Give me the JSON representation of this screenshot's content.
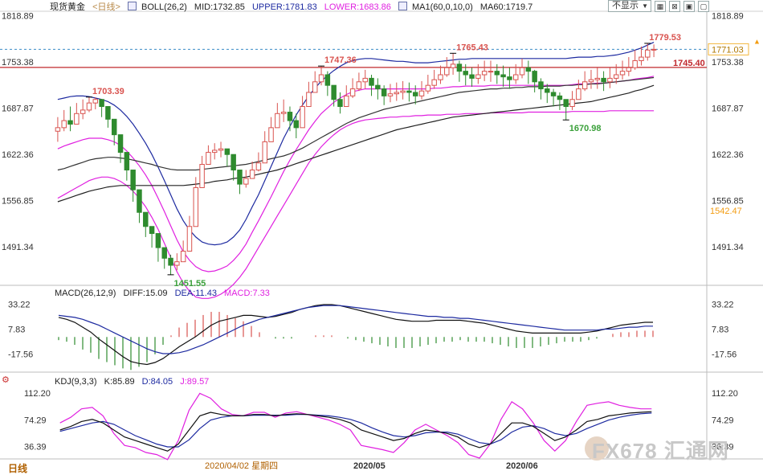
{
  "header": {
    "instrument": "现货黄金",
    "period_link": "<日线>",
    "boll": "BOLL(26,2)",
    "mid": "MID:1732.85",
    "upper": "UPPER:1781.83",
    "lower": "LOWER:1683.86",
    "ma": "MA1(60,0,10,0)",
    "ma60": "MA60:1719.7",
    "display_dropdown": "不显示",
    "caret": "▼"
  },
  "colors": {
    "candle_up": "#d9534f",
    "candle_down": "#2e8b2e",
    "boll_upper": "#1d2aa0",
    "boll_lower": "#e020e0",
    "boll_mid": "#e020e0",
    "ma60": "#222222",
    "ma_other": "#333333",
    "price_line_red": "#c0282d",
    "dashed_blue": "#3b8cc8",
    "macd_diff": "#111111",
    "macd_dea": "#1d2aa0",
    "kdj_k": "#111111",
    "kdj_d": "#1d2aa0",
    "kdj_j": "#e020e0",
    "axis_text": "#333333",
    "label_red": "#d9534f",
    "label_green": "#3aa03a",
    "current_price_box": "#f3b63a",
    "low_price_orange": "#f39c12"
  },
  "axes": {
    "price_ticks": [
      "1818.89",
      "1753.38",
      "1687.87",
      "1622.36",
      "1556.85",
      "1491.34"
    ],
    "current_price": "1771.03",
    "level_right": "1542.47",
    "red_line_label": "1745.40",
    "x_labels": [
      "2020/04/02 星期四",
      "2020/05",
      "2020/06"
    ],
    "macd_ticks": [
      "33.22",
      "7.83",
      "-17.56"
    ],
    "kdj_ticks": [
      "112.20",
      "74.29",
      "36.39"
    ]
  },
  "annotations": {
    "high1": "1703.39",
    "low1": "1451.55",
    "high2": "1747.36",
    "high3": "1765.43",
    "low2": "1670.98",
    "high4": "1779.53"
  },
  "macd_header": {
    "name": "MACD(26,12,9)",
    "diff": "DIFF:15.09",
    "dea": "DEA:11.43",
    "macd": "MACD:7.33"
  },
  "kdj_header": {
    "name": "KDJ(9,3,3)",
    "k": "K:85.89",
    "d": "D:84.05",
    "j": "J:89.57"
  },
  "footer": {
    "period_tab": "日线",
    "watermark": "FX678 汇通网"
  },
  "chart_data": {
    "type": "candlestick",
    "ylim": [
      1440,
      1825
    ],
    "closes": [
      1660,
      1670,
      1665,
      1680,
      1685,
      1695,
      1700,
      1690,
      1672,
      1650,
      1625,
      1600,
      1572,
      1540,
      1520,
      1510,
      1490,
      1475,
      1465,
      1470,
      1485,
      1520,
      1575,
      1608,
      1625,
      1628,
      1630,
      1622,
      1600,
      1580,
      1588,
      1600,
      1610,
      1640,
      1660,
      1680,
      1682,
      1670,
      1660,
      1690,
      1710,
      1725,
      1735,
      1720,
      1700,
      1690,
      1705,
      1715,
      1725,
      1730,
      1720,
      1715,
      1705,
      1708,
      1710,
      1712,
      1710,
      1705,
      1712,
      1720,
      1728,
      1735,
      1745,
      1750,
      1740,
      1735,
      1730,
      1735,
      1740,
      1740,
      1735,
      1732,
      1728,
      1735,
      1745,
      1740,
      1725,
      1715,
      1710,
      1705,
      1700,
      1690,
      1700,
      1715,
      1725,
      1728,
      1730,
      1725,
      1730,
      1735,
      1740,
      1745,
      1755,
      1760,
      1770,
      1771
    ],
    "highs": [
      1675,
      1685,
      1690,
      1695,
      1700,
      1703.39,
      1703,
      1695,
      1685,
      1665,
      1635,
      1615,
      1585,
      1560,
      1535,
      1520,
      1500,
      1490,
      1480,
      1482,
      1500,
      1535,
      1590,
      1620,
      1635,
      1638,
      1640,
      1630,
      1615,
      1595,
      1600,
      1612,
      1625,
      1655,
      1675,
      1695,
      1700,
      1690,
      1680,
      1705,
      1725,
      1740,
      1747.36,
      1740,
      1718,
      1710,
      1720,
      1730,
      1738,
      1742,
      1735,
      1730,
      1720,
      1722,
      1724,
      1726,
      1724,
      1720,
      1726,
      1735,
      1742,
      1748,
      1760,
      1765.43,
      1755,
      1750,
      1745,
      1750,
      1755,
      1755,
      1750,
      1748,
      1745,
      1750,
      1758,
      1755,
      1742,
      1730,
      1722,
      1715,
      1710,
      1700,
      1712,
      1728,
      1740,
      1742,
      1745,
      1740,
      1745,
      1750,
      1755,
      1760,
      1770,
      1775,
      1779.53,
      1778
    ],
    "lows": [
      1640,
      1655,
      1655,
      1665,
      1672,
      1682,
      1686,
      1675,
      1660,
      1635,
      1610,
      1585,
      1555,
      1525,
      1505,
      1490,
      1470,
      1460,
      1451.55,
      1458,
      1470,
      1508,
      1560,
      1595,
      1612,
      1615,
      1618,
      1605,
      1585,
      1566,
      1575,
      1588,
      1598,
      1628,
      1645,
      1665,
      1668,
      1655,
      1645,
      1675,
      1695,
      1710,
      1720,
      1705,
      1690,
      1680,
      1690,
      1702,
      1712,
      1715,
      1705,
      1700,
      1692,
      1696,
      1698,
      1700,
      1697,
      1693,
      1700,
      1708,
      1715,
      1722,
      1732,
      1735,
      1725,
      1720,
      1718,
      1722,
      1726,
      1725,
      1722,
      1718,
      1715,
      1722,
      1730,
      1722,
      1710,
      1700,
      1695,
      1690,
      1685,
      1670.98,
      1685,
      1700,
      1712,
      1715,
      1715,
      1712,
      1716,
      1722,
      1728,
      1733,
      1742,
      1748,
      1755,
      1760
    ],
    "boll_upper": [
      1700,
      1702,
      1704,
      1705,
      1705,
      1704,
      1702,
      1700,
      1697,
      1692,
      1685,
      1676,
      1665,
      1652,
      1638,
      1622,
      1604,
      1585,
      1565,
      1545,
      1528,
      1515,
      1505,
      1498,
      1495,
      1494,
      1495,
      1498,
      1505,
      1515,
      1530,
      1548,
      1565,
      1585,
      1605,
      1625,
      1645,
      1662,
      1678,
      1692,
      1705,
      1716,
      1726,
      1734,
      1741,
      1747,
      1752,
      1755,
      1757,
      1758,
      1758,
      1757,
      1756,
      1755,
      1754,
      1754,
      1753,
      1752,
      1752,
      1752,
      1753,
      1754,
      1755,
      1756,
      1757,
      1757,
      1758,
      1758,
      1758,
      1758,
      1758,
      1758,
      1758,
      1758,
      1758,
      1758,
      1758,
      1758,
      1758,
      1758,
      1758,
      1758,
      1759,
      1760,
      1760,
      1760,
      1761,
      1761,
      1762,
      1763,
      1765,
      1767,
      1770,
      1773,
      1777,
      1781
    ],
    "boll_lower": [
      1560,
      1565,
      1570,
      1575,
      1580,
      1585,
      1588,
      1590,
      1590,
      1588,
      1584,
      1578,
      1570,
      1560,
      1548,
      1533,
      1516,
      1496,
      1476,
      1456,
      1440,
      1428,
      1420,
      1418,
      1418,
      1420,
      1424,
      1430,
      1438,
      1448,
      1460,
      1475,
      1490,
      1505,
      1520,
      1535,
      1550,
      1565,
      1580,
      1595,
      1610,
      1622,
      1633,
      1642,
      1650,
      1657,
      1662,
      1666,
      1669,
      1671,
      1672,
      1673,
      1674,
      1675,
      1675,
      1676,
      1676,
      1677,
      1677,
      1678,
      1678,
      1678,
      1679,
      1679,
      1679,
      1680,
      1680,
      1680,
      1680,
      1681,
      1681,
      1681,
      1681,
      1681,
      1681,
      1682,
      1682,
      1682,
      1682,
      1682,
      1682,
      1682,
      1683,
      1683,
      1683,
      1683,
      1683,
      1683,
      1684,
      1684,
      1684,
      1684,
      1684,
      1684,
      1684,
      1684
    ],
    "boll_mid": [
      1630,
      1634,
      1637,
      1640,
      1643,
      1645,
      1645,
      1645,
      1643,
      1640,
      1635,
      1627,
      1617,
      1606,
      1593,
      1578,
      1560,
      1541,
      1521,
      1501,
      1484,
      1472,
      1463,
      1458,
      1456,
      1457,
      1460,
      1464,
      1472,
      1482,
      1495,
      1512,
      1528,
      1545,
      1562,
      1580,
      1598,
      1614,
      1629,
      1643,
      1657,
      1669,
      1680,
      1688,
      1696,
      1702,
      1707,
      1711,
      1713,
      1715,
      1715,
      1715,
      1715,
      1715,
      1715,
      1715,
      1715,
      1715,
      1715,
      1715,
      1716,
      1716,
      1717,
      1718,
      1718,
      1719,
      1719,
      1719,
      1719,
      1720,
      1720,
      1720,
      1720,
      1720,
      1720,
      1720,
      1720,
      1720,
      1720,
      1720,
      1720,
      1720,
      1721,
      1722,
      1722,
      1722,
      1723,
      1723,
      1724,
      1725,
      1726,
      1727,
      1729,
      1730,
      1731,
      1733
    ],
    "ma60": [
      1555,
      1558,
      1561,
      1564,
      1567,
      1570,
      1572,
      1574,
      1576,
      1577,
      1578,
      1578,
      1578,
      1578,
      1578,
      1578,
      1578,
      1578,
      1578,
      1578,
      1578,
      1579,
      1580,
      1581,
      1582,
      1584,
      1585,
      1586,
      1588,
      1589,
      1590,
      1592,
      1594,
      1596,
      1598,
      1600,
      1603,
      1606,
      1609,
      1612,
      1615,
      1618,
      1621,
      1624,
      1627,
      1630,
      1633,
      1636,
      1639,
      1642,
      1645,
      1648,
      1651,
      1654,
      1657,
      1659,
      1661,
      1663,
      1665,
      1667,
      1669,
      1671,
      1673,
      1675,
      1676,
      1677,
      1678,
      1679,
      1680,
      1681,
      1682,
      1683,
      1684,
      1685,
      1686,
      1687,
      1688,
      1689,
      1690,
      1691,
      1692,
      1693,
      1694,
      1695,
      1696,
      1697,
      1699,
      1701,
      1703,
      1705,
      1707,
      1709,
      1712,
      1714,
      1717,
      1720
    ],
    "ma_mid": [
      1600,
      1602,
      1605,
      1608,
      1611,
      1614,
      1616,
      1617,
      1618,
      1618,
      1617,
      1616,
      1614,
      1612,
      1610,
      1608,
      1605,
      1603,
      1601,
      1600,
      1600,
      1600,
      1600,
      1601,
      1602,
      1603,
      1604,
      1605,
      1606,
      1607,
      1608,
      1610,
      1612,
      1614,
      1616,
      1618,
      1620,
      1623,
      1627,
      1631,
      1636,
      1641,
      1646,
      1651,
      1656,
      1661,
      1666,
      1670,
      1674,
      1677,
      1680,
      1683,
      1686,
      1688,
      1690,
      1692,
      1694,
      1696,
      1698,
      1700,
      1702,
      1704,
      1706,
      1708,
      1710,
      1711,
      1712,
      1713,
      1714,
      1715,
      1715,
      1716,
      1716,
      1717,
      1717,
      1718,
      1718,
      1718,
      1719,
      1719,
      1719,
      1720,
      1720,
      1721,
      1721,
      1722,
      1722,
      1723,
      1724,
      1725,
      1726,
      1727,
      1728,
      1729,
      1730,
      1731
    ],
    "macd": {
      "ylim": [
        -35,
        42
      ],
      "diff": [
        20,
        18,
        15,
        10,
        5,
        -2,
        -8,
        -14,
        -20,
        -25,
        -27,
        -28,
        -26,
        -22,
        -16,
        -10,
        -5,
        0,
        6,
        12,
        16,
        18,
        20,
        22,
        22,
        21,
        20,
        21,
        23,
        25,
        28,
        30,
        32,
        33,
        33,
        32,
        30,
        28,
        26,
        24,
        22,
        20,
        18,
        17,
        16,
        16,
        16,
        17,
        17,
        17,
        17,
        16,
        15,
        14,
        12,
        10,
        8,
        6,
        5,
        4,
        4,
        4,
        4,
        4,
        4,
        4,
        5,
        6,
        8,
        10,
        12,
        13,
        14,
        15,
        15
      ],
      "dea": [
        22,
        21,
        20,
        18,
        15,
        12,
        8,
        4,
        0,
        -4,
        -8,
        -12,
        -15,
        -17,
        -17,
        -16,
        -14,
        -11,
        -8,
        -4,
        0,
        4,
        8,
        12,
        15,
        18,
        20,
        22,
        24,
        26,
        28,
        30,
        31,
        32,
        32,
        32,
        31,
        30,
        29,
        28,
        27,
        26,
        25,
        24,
        23,
        22,
        21,
        21,
        20,
        20,
        19,
        19,
        18,
        17,
        16,
        15,
        14,
        13,
        12,
        11,
        10,
        9,
        8,
        7,
        7,
        7,
        7,
        7,
        8,
        8,
        9,
        10,
        10,
        11,
        11
      ],
      "hist": [
        -2,
        -3,
        -5,
        -8,
        -10,
        -14,
        -16,
        -18,
        -20,
        -21,
        -19,
        -16,
        -11,
        -5,
        1,
        6,
        9,
        11,
        14,
        16,
        16,
        14,
        12,
        10,
        7,
        3,
        0,
        -1,
        -1,
        -1,
        0,
        0,
        1,
        1,
        1,
        0,
        -1,
        -2,
        -3,
        -4,
        -5,
        -6,
        -7,
        -7,
        -7,
        -6,
        -5,
        -4,
        -3,
        -3,
        -2,
        -3,
        -3,
        -3,
        -4,
        -5,
        -6,
        -7,
        -7,
        -7,
        -6,
        -5,
        -4,
        -3,
        -3,
        -3,
        -2,
        -1,
        0,
        2,
        3,
        3,
        4,
        4,
        4
      ]
    },
    "kdj": {
      "ylim": [
        20,
        125
      ],
      "k": [
        60,
        65,
        72,
        75,
        70,
        60,
        50,
        45,
        40,
        35,
        30,
        40,
        60,
        80,
        85,
        82,
        80,
        80,
        82,
        82,
        80,
        82,
        83,
        82,
        80,
        78,
        75,
        70,
        60,
        55,
        50,
        45,
        48,
        55,
        60,
        58,
        55,
        50,
        40,
        35,
        40,
        55,
        70,
        70,
        65,
        55,
        45,
        50,
        60,
        72,
        75,
        80,
        82,
        84,
        85,
        86
      ],
      "d": [
        58,
        62,
        66,
        70,
        72,
        68,
        60,
        52,
        46,
        40,
        36,
        36,
        46,
        62,
        74,
        78,
        80,
        80,
        81,
        81,
        81,
        81,
        82,
        82,
        81,
        80,
        78,
        75,
        70,
        63,
        57,
        52,
        50,
        52,
        56,
        57,
        57,
        54,
        48,
        42,
        40,
        46,
        57,
        64,
        66,
        62,
        55,
        52,
        55,
        62,
        68,
        74,
        78,
        81,
        83,
        84
      ],
      "j": [
        70,
        78,
        90,
        92,
        80,
        55,
        38,
        35,
        28,
        25,
        18,
        45,
        88,
        112,
        105,
        90,
        82,
        80,
        85,
        85,
        78,
        84,
        86,
        82,
        78,
        74,
        68,
        60,
        38,
        35,
        32,
        28,
        42,
        60,
        68,
        60,
        52,
        42,
        25,
        20,
        40,
        75,
        100,
        90,
        70,
        45,
        30,
        45,
        72,
        95,
        98,
        100,
        95,
        92,
        90,
        90
      ]
    }
  }
}
